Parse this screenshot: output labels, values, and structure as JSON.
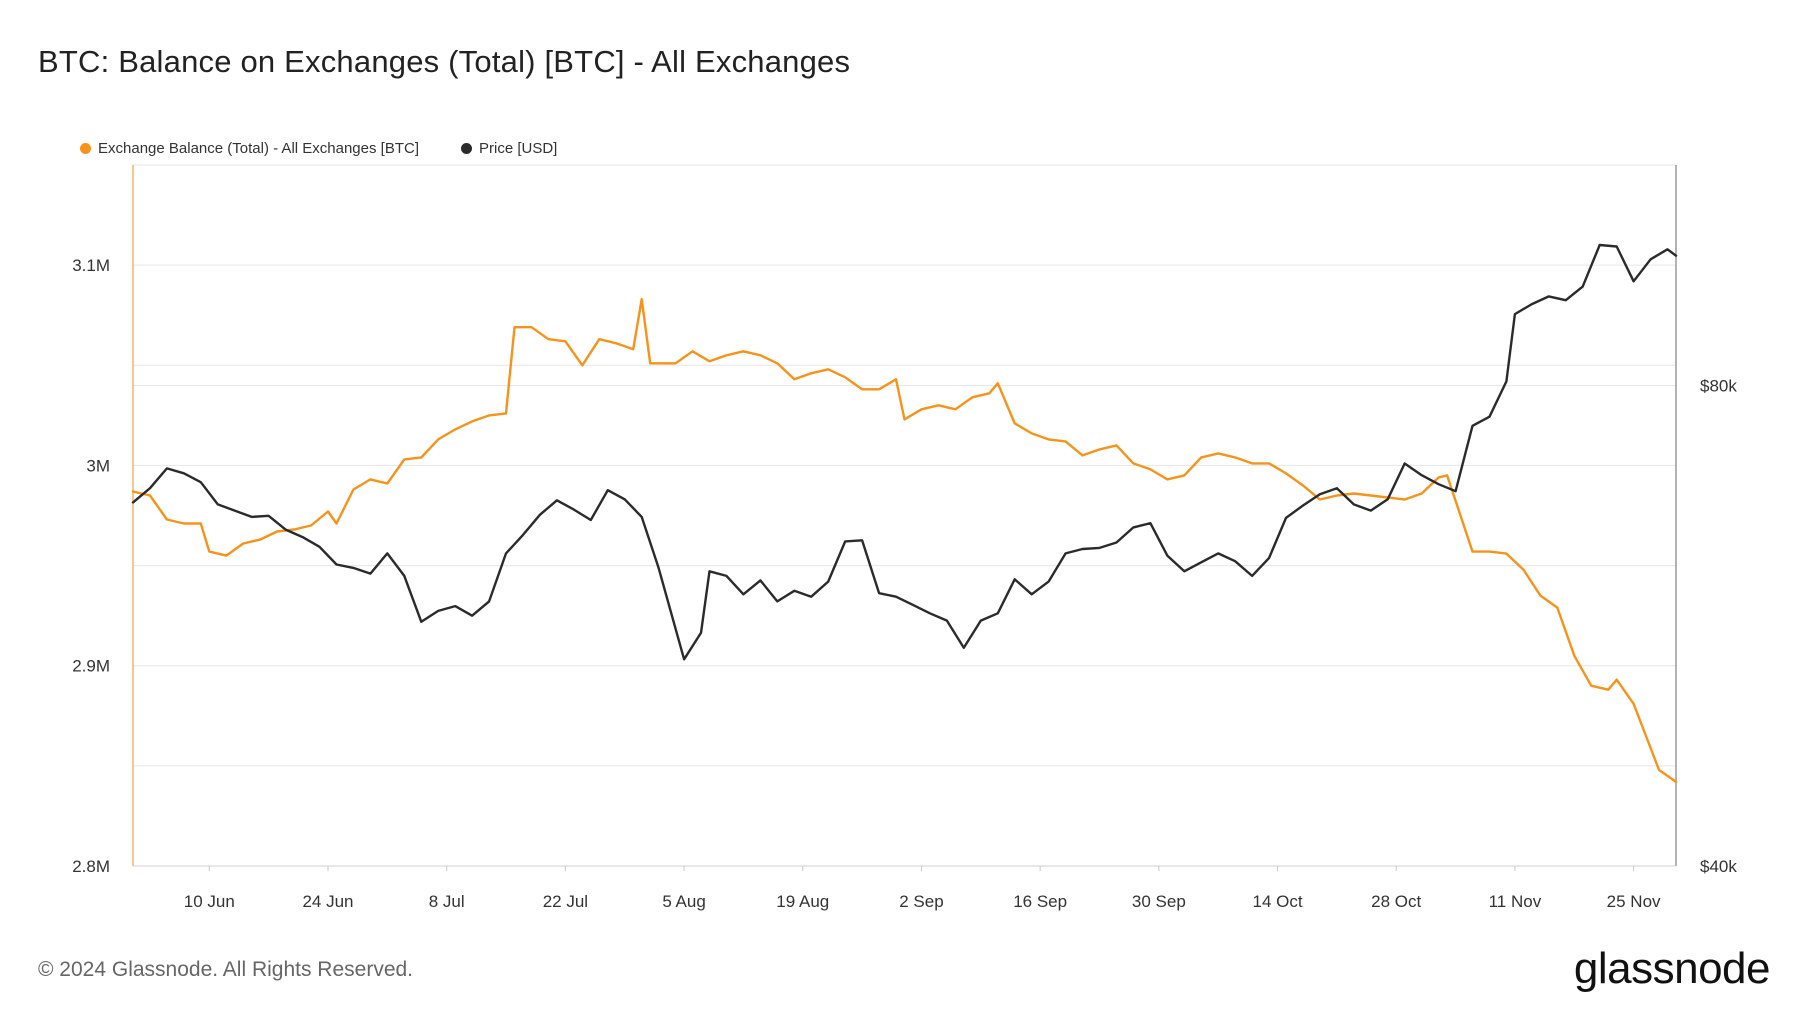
{
  "title": "BTC: Balance on Exchanges (Total) [BTC] - All Exchanges",
  "legend": {
    "balance": "Exchange Balance (Total) - All Exchanges [BTC]",
    "price": "Price [USD]"
  },
  "footer": "© 2024 Glassnode. All Rights Reserved.",
  "brand": "glassnode",
  "colors": {
    "balance": "#f7931a",
    "price": "#2b2b2b",
    "grid": "#e6e6e6",
    "axis": "#cfcfcf"
  },
  "chart_data": {
    "type": "line",
    "x_ticks": [
      "10 Jun",
      "24 Jun",
      "8 Jul",
      "22 Jul",
      "5 Aug",
      "19 Aug",
      "2 Sep",
      "16 Sep",
      "30 Sep",
      "14 Oct",
      "28 Oct",
      "11 Nov",
      "25 Nov"
    ],
    "x_range": [
      "2024-06-01",
      "2024-11-30"
    ],
    "y_left": {
      "ticks": [
        "2.8M",
        "2.9M",
        "3M",
        "3.1M"
      ],
      "tick_values": [
        2800000,
        2900000,
        3000000,
        3100000
      ],
      "min": 2800000,
      "max": 3150000
    },
    "y_right": {
      "ticks": [
        "$40k",
        "$80k"
      ],
      "tick_values": [
        40000,
        80000
      ],
      "scale": "log",
      "min": 40000,
      "max": 110000
    },
    "grid": true,
    "legend_position": "top-left",
    "series": [
      {
        "name": "Exchange Balance (Total) - All Exchanges [BTC]",
        "axis": "left",
        "color": "#f7931a",
        "points": [
          [
            "2024-06-01",
            2987000
          ],
          [
            "2024-06-03",
            2985000
          ],
          [
            "2024-06-05",
            2973000
          ],
          [
            "2024-06-07",
            2971000
          ],
          [
            "2024-06-09",
            2971000
          ],
          [
            "2024-06-10",
            2957000
          ],
          [
            "2024-06-12",
            2955000
          ],
          [
            "2024-06-14",
            2961000
          ],
          [
            "2024-06-16",
            2963000
          ],
          [
            "2024-06-18",
            2967000
          ],
          [
            "2024-06-20",
            2968000
          ],
          [
            "2024-06-22",
            2970000
          ],
          [
            "2024-06-24",
            2977000
          ],
          [
            "2024-06-25",
            2971000
          ],
          [
            "2024-06-27",
            2988000
          ],
          [
            "2024-06-29",
            2993000
          ],
          [
            "2024-07-01",
            2991000
          ],
          [
            "2024-07-03",
            3003000
          ],
          [
            "2024-07-05",
            3004000
          ],
          [
            "2024-07-07",
            3013000
          ],
          [
            "2024-07-09",
            3018000
          ],
          [
            "2024-07-11",
            3022000
          ],
          [
            "2024-07-13",
            3025000
          ],
          [
            "2024-07-15",
            3026000
          ],
          [
            "2024-07-16",
            3069000
          ],
          [
            "2024-07-18",
            3069000
          ],
          [
            "2024-07-20",
            3063000
          ],
          [
            "2024-07-22",
            3062000
          ],
          [
            "2024-07-24",
            3050000
          ],
          [
            "2024-07-26",
            3063000
          ],
          [
            "2024-07-28",
            3061000
          ],
          [
            "2024-07-30",
            3058000
          ],
          [
            "2024-07-31",
            3083000
          ],
          [
            "2024-08-01",
            3051000
          ],
          [
            "2024-08-04",
            3051000
          ],
          [
            "2024-08-06",
            3057000
          ],
          [
            "2024-08-08",
            3052000
          ],
          [
            "2024-08-10",
            3055000
          ],
          [
            "2024-08-12",
            3057000
          ],
          [
            "2024-08-14",
            3055000
          ],
          [
            "2024-08-16",
            3051000
          ],
          [
            "2024-08-18",
            3043000
          ],
          [
            "2024-08-20",
            3046000
          ],
          [
            "2024-08-22",
            3048000
          ],
          [
            "2024-08-24",
            3044000
          ],
          [
            "2024-08-26",
            3038000
          ],
          [
            "2024-08-28",
            3038000
          ],
          [
            "2024-08-30",
            3043000
          ],
          [
            "2024-08-31",
            3023000
          ],
          [
            "2024-09-02",
            3028000
          ],
          [
            "2024-09-04",
            3030000
          ],
          [
            "2024-09-06",
            3028000
          ],
          [
            "2024-09-08",
            3034000
          ],
          [
            "2024-09-10",
            3036000
          ],
          [
            "2024-09-11",
            3041000
          ],
          [
            "2024-09-13",
            3021000
          ],
          [
            "2024-09-15",
            3016000
          ],
          [
            "2024-09-17",
            3013000
          ],
          [
            "2024-09-19",
            3012000
          ],
          [
            "2024-09-21",
            3005000
          ],
          [
            "2024-09-23",
            3008000
          ],
          [
            "2024-09-25",
            3010000
          ],
          [
            "2024-09-27",
            3001000
          ],
          [
            "2024-09-29",
            2998000
          ],
          [
            "2024-10-01",
            2993000
          ],
          [
            "2024-10-03",
            2995000
          ],
          [
            "2024-10-05",
            3004000
          ],
          [
            "2024-10-07",
            3006000
          ],
          [
            "2024-10-09",
            3004000
          ],
          [
            "2024-10-11",
            3001000
          ],
          [
            "2024-10-13",
            3001000
          ],
          [
            "2024-10-15",
            2996000
          ],
          [
            "2024-10-17",
            2990000
          ],
          [
            "2024-10-19",
            2983000
          ],
          [
            "2024-10-21",
            2985000
          ],
          [
            "2024-10-23",
            2986000
          ],
          [
            "2024-10-25",
            2985000
          ],
          [
            "2024-10-27",
            2984000
          ],
          [
            "2024-10-29",
            2983000
          ],
          [
            "2024-10-31",
            2986000
          ],
          [
            "2024-11-02",
            2994000
          ],
          [
            "2024-11-03",
            2995000
          ],
          [
            "2024-11-06",
            2957000
          ],
          [
            "2024-11-08",
            2957000
          ],
          [
            "2024-11-10",
            2956000
          ],
          [
            "2024-11-12",
            2948000
          ],
          [
            "2024-11-14",
            2935000
          ],
          [
            "2024-11-16",
            2929000
          ],
          [
            "2024-11-18",
            2905000
          ],
          [
            "2024-11-20",
            2890000
          ],
          [
            "2024-11-22",
            2888000
          ],
          [
            "2024-11-23",
            2893000
          ],
          [
            "2024-11-25",
            2881000
          ],
          [
            "2024-11-28",
            2848000
          ],
          [
            "2024-11-30",
            2842000
          ]
        ]
      },
      {
        "name": "Price [USD]",
        "axis": "right",
        "color": "#2b2b2b",
        "points": [
          [
            "2024-06-01",
            67600
          ],
          [
            "2024-06-03",
            69000
          ],
          [
            "2024-06-05",
            71000
          ],
          [
            "2024-06-07",
            70500
          ],
          [
            "2024-06-09",
            69600
          ],
          [
            "2024-06-11",
            67400
          ],
          [
            "2024-06-13",
            66800
          ],
          [
            "2024-06-15",
            66200
          ],
          [
            "2024-06-17",
            66300
          ],
          [
            "2024-06-19",
            65000
          ],
          [
            "2024-06-21",
            64300
          ],
          [
            "2024-06-23",
            63400
          ],
          [
            "2024-06-25",
            61800
          ],
          [
            "2024-06-27",
            61500
          ],
          [
            "2024-06-29",
            61000
          ],
          [
            "2024-07-01",
            62800
          ],
          [
            "2024-07-03",
            60800
          ],
          [
            "2024-07-05",
            56900
          ],
          [
            "2024-07-07",
            57800
          ],
          [
            "2024-07-09",
            58200
          ],
          [
            "2024-07-11",
            57400
          ],
          [
            "2024-07-13",
            58600
          ],
          [
            "2024-07-15",
            62800
          ],
          [
            "2024-07-17",
            64500
          ],
          [
            "2024-07-19",
            66400
          ],
          [
            "2024-07-21",
            67800
          ],
          [
            "2024-07-23",
            66900
          ],
          [
            "2024-07-25",
            65900
          ],
          [
            "2024-07-27",
            68800
          ],
          [
            "2024-07-29",
            67900
          ],
          [
            "2024-07-31",
            66200
          ],
          [
            "2024-08-02",
            61500
          ],
          [
            "2024-08-05",
            53900
          ],
          [
            "2024-08-07",
            56000
          ],
          [
            "2024-08-08",
            61200
          ],
          [
            "2024-08-10",
            60800
          ],
          [
            "2024-08-12",
            59200
          ],
          [
            "2024-08-14",
            60400
          ],
          [
            "2024-08-16",
            58600
          ],
          [
            "2024-08-18",
            59500
          ],
          [
            "2024-08-20",
            59000
          ],
          [
            "2024-08-22",
            60300
          ],
          [
            "2024-08-24",
            63900
          ],
          [
            "2024-08-26",
            64000
          ],
          [
            "2024-08-28",
            59300
          ],
          [
            "2024-08-30",
            59000
          ],
          [
            "2024-09-01",
            58300
          ],
          [
            "2024-09-03",
            57600
          ],
          [
            "2024-09-05",
            57000
          ],
          [
            "2024-09-07",
            54800
          ],
          [
            "2024-09-09",
            57000
          ],
          [
            "2024-09-11",
            57600
          ],
          [
            "2024-09-13",
            60500
          ],
          [
            "2024-09-15",
            59200
          ],
          [
            "2024-09-17",
            60300
          ],
          [
            "2024-09-19",
            62800
          ],
          [
            "2024-09-21",
            63200
          ],
          [
            "2024-09-23",
            63300
          ],
          [
            "2024-09-25",
            63800
          ],
          [
            "2024-09-27",
            65200
          ],
          [
            "2024-09-29",
            65600
          ],
          [
            "2024-10-01",
            62600
          ],
          [
            "2024-10-03",
            61200
          ],
          [
            "2024-10-05",
            62000
          ],
          [
            "2024-10-07",
            62800
          ],
          [
            "2024-10-09",
            62100
          ],
          [
            "2024-10-11",
            60800
          ],
          [
            "2024-10-13",
            62400
          ],
          [
            "2024-10-15",
            66100
          ],
          [
            "2024-10-17",
            67300
          ],
          [
            "2024-10-19",
            68400
          ],
          [
            "2024-10-21",
            69000
          ],
          [
            "2024-10-23",
            67400
          ],
          [
            "2024-10-25",
            66800
          ],
          [
            "2024-10-27",
            67900
          ],
          [
            "2024-10-29",
            71500
          ],
          [
            "2024-10-31",
            70300
          ],
          [
            "2024-11-02",
            69400
          ],
          [
            "2024-11-04",
            68700
          ],
          [
            "2024-11-06",
            75500
          ],
          [
            "2024-11-08",
            76500
          ],
          [
            "2024-11-10",
            80500
          ],
          [
            "2024-11-11",
            88700
          ],
          [
            "2024-11-13",
            90000
          ],
          [
            "2024-11-15",
            91000
          ],
          [
            "2024-11-17",
            90500
          ],
          [
            "2024-11-19",
            92300
          ],
          [
            "2024-11-21",
            98000
          ],
          [
            "2024-11-23",
            97800
          ],
          [
            "2024-11-25",
            93000
          ],
          [
            "2024-11-27",
            96000
          ],
          [
            "2024-11-29",
            97400
          ],
          [
            "2024-11-30",
            96500
          ]
        ]
      }
    ]
  }
}
